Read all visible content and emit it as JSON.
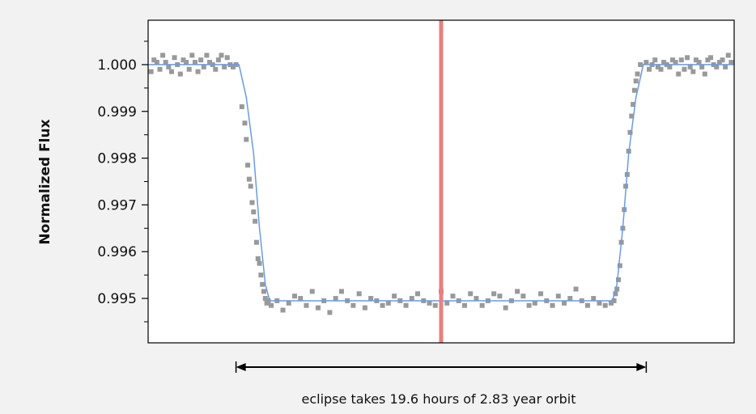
{
  "chart_data": {
    "type": "scatter",
    "title": "",
    "xlabel": "",
    "ylabel": "Normalized Flux",
    "ylim": [
      0.99405,
      1.00095
    ],
    "xlim": [
      -1.0,
      1.0
    ],
    "yticks": [
      1.0,
      0.999,
      0.998,
      0.997,
      0.996,
      0.995
    ],
    "ytick_labels": [
      "1.000",
      "0.999",
      "0.998",
      "0.997",
      "0.996",
      "0.995"
    ],
    "minor_yticks": [
      1.0005,
      0.9995,
      0.9985,
      0.9975,
      0.9965,
      0.9955,
      0.9945
    ],
    "grid": false,
    "legend": "none",
    "midline_x": 0.0,
    "annotation": {
      "text": "eclipse takes 19.6 hours of 2.83 year orbit",
      "arrow_from_x": -0.7,
      "arrow_to_x": 0.7
    },
    "colors": {
      "points": "#999999",
      "model": "#6a9be8",
      "midline": "#e88080",
      "axes": "#000000"
    },
    "model": {
      "name": "",
      "x": [
        -1.0,
        -0.69,
        -0.665,
        -0.64,
        -0.62,
        -0.6,
        -0.585,
        -0.57,
        -0.55,
        0.55,
        0.57,
        0.585,
        0.6,
        0.62,
        0.64,
        0.665,
        0.69,
        1.0
      ],
      "y": [
        1.0,
        1.0,
        0.9993,
        0.9981,
        0.9965,
        0.9953,
        0.99495,
        0.99495,
        0.99495,
        0.99495,
        0.99495,
        0.99495,
        0.9953,
        0.9965,
        0.9981,
        0.9993,
        1.0,
        1.0
      ]
    },
    "series": [
      {
        "name": "",
        "x": [
          -0.99,
          -0.98,
          -0.97,
          -0.96,
          -0.95,
          -0.94,
          -0.93,
          -0.92,
          -0.91,
          -0.9,
          -0.89,
          -0.88,
          -0.87,
          -0.86,
          -0.85,
          -0.84,
          -0.83,
          -0.82,
          -0.81,
          -0.8,
          -0.79,
          -0.78,
          -0.77,
          -0.76,
          -0.75,
          -0.74,
          -0.73,
          -0.72,
          -0.71,
          -0.7,
          -0.68,
          -0.67,
          -0.665,
          -0.66,
          -0.655,
          -0.65,
          -0.645,
          -0.64,
          -0.635,
          -0.63,
          -0.625,
          -0.62,
          -0.615,
          -0.61,
          -0.605,
          -0.6,
          -0.595,
          -0.59,
          -0.58,
          -0.56,
          -0.54,
          -0.52,
          -0.5,
          -0.48,
          -0.46,
          -0.44,
          -0.42,
          -0.4,
          -0.38,
          -0.36,
          -0.34,
          -0.32,
          -0.3,
          -0.28,
          -0.26,
          -0.24,
          -0.22,
          -0.2,
          -0.18,
          -0.16,
          -0.14,
          -0.12,
          -0.1,
          -0.08,
          -0.06,
          -0.04,
          -0.02,
          0.0,
          0.02,
          0.04,
          0.06,
          0.08,
          0.1,
          0.12,
          0.14,
          0.16,
          0.18,
          0.2,
          0.22,
          0.24,
          0.26,
          0.28,
          0.3,
          0.32,
          0.34,
          0.36,
          0.38,
          0.4,
          0.42,
          0.44,
          0.46,
          0.48,
          0.5,
          0.52,
          0.54,
          0.56,
          0.58,
          0.59,
          0.595,
          0.6,
          0.605,
          0.61,
          0.615,
          0.62,
          0.625,
          0.63,
          0.635,
          0.64,
          0.645,
          0.65,
          0.655,
          0.66,
          0.665,
          0.67,
          0.68,
          0.7,
          0.71,
          0.72,
          0.73,
          0.74,
          0.75,
          0.76,
          0.77,
          0.78,
          0.79,
          0.8,
          0.81,
          0.82,
          0.83,
          0.84,
          0.85,
          0.86,
          0.87,
          0.88,
          0.89,
          0.9,
          0.91,
          0.92,
          0.93,
          0.94,
          0.95,
          0.96,
          0.97,
          0.98,
          0.99
        ],
        "y": [
          0.99985,
          1.0001,
          1.00005,
          0.9999,
          1.0002,
          1.00005,
          0.99995,
          0.99985,
          1.00015,
          1.0,
          0.9998,
          1.0001,
          1.00005,
          0.9999,
          1.0002,
          1.00005,
          0.99985,
          1.0001,
          0.99995,
          1.0002,
          1.00005,
          1.0,
          0.9999,
          1.0001,
          1.0002,
          0.99995,
          1.00015,
          1.0,
          0.99995,
          1.0,
          0.9991,
          0.99875,
          0.9984,
          0.99785,
          0.99755,
          0.9974,
          0.99705,
          0.99685,
          0.99665,
          0.9962,
          0.99585,
          0.99575,
          0.9955,
          0.9953,
          0.99515,
          0.995,
          0.9949,
          0.99495,
          0.99485,
          0.99495,
          0.99475,
          0.9949,
          0.99505,
          0.995,
          0.99485,
          0.99515,
          0.9948,
          0.99495,
          0.9947,
          0.995,
          0.99515,
          0.99495,
          0.99485,
          0.9951,
          0.9948,
          0.995,
          0.99495,
          0.99485,
          0.9949,
          0.99505,
          0.99495,
          0.99485,
          0.995,
          0.9951,
          0.99495,
          0.9949,
          0.99485,
          0.99515,
          0.9949,
          0.99505,
          0.99495,
          0.99485,
          0.9951,
          0.995,
          0.99485,
          0.99495,
          0.9951,
          0.99505,
          0.9948,
          0.99495,
          0.99515,
          0.99505,
          0.99485,
          0.9949,
          0.9951,
          0.99495,
          0.99485,
          0.99505,
          0.9949,
          0.995,
          0.9952,
          0.99495,
          0.99485,
          0.995,
          0.9949,
          0.99485,
          0.9949,
          0.99495,
          0.9951,
          0.9952,
          0.9954,
          0.9957,
          0.9962,
          0.9965,
          0.9969,
          0.9974,
          0.99765,
          0.99815,
          0.99855,
          0.9989,
          0.99915,
          0.99945,
          0.99965,
          0.9998,
          1.0,
          1.00005,
          0.9999,
          1.0,
          1.0001,
          0.99995,
          0.9999,
          1.00005,
          1.0,
          0.99995,
          1.0001,
          1.00005,
          0.9998,
          1.0001,
          0.9999,
          1.00015,
          0.99995,
          0.99985,
          1.0001,
          1.00005,
          0.99995,
          0.9998,
          1.0001,
          1.00015,
          1.0,
          0.99995,
          1.00005,
          1.0001,
          0.99995,
          1.0002,
          1.00005
        ]
      }
    ]
  }
}
